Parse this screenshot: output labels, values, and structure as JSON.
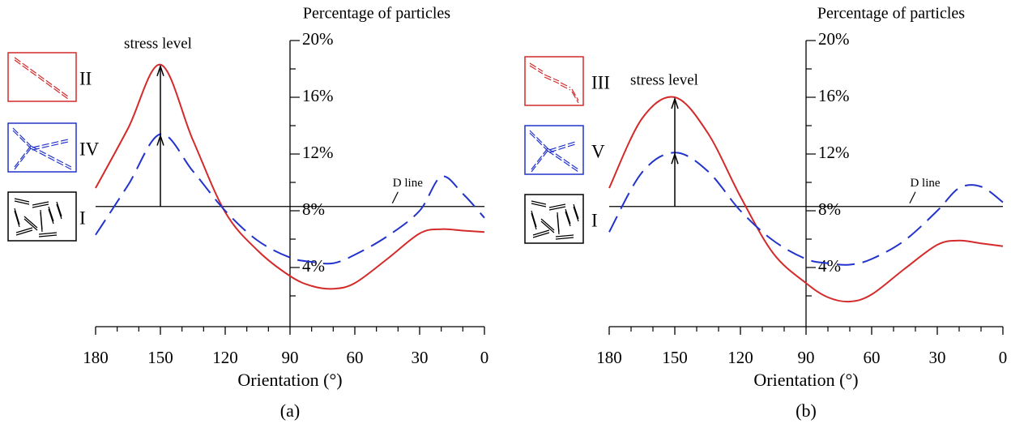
{
  "chart_data": [
    {
      "type": "line",
      "panel_label": "(a)",
      "y_label": "Percentage of particles",
      "x_label": "Orientation (°)",
      "xlim": [
        180,
        0
      ],
      "xticks": [
        180,
        150,
        120,
        90,
        60,
        30,
        0
      ],
      "x_minor_ticks": [
        170,
        160,
        140,
        130,
        110,
        100,
        80,
        70,
        50,
        40,
        20,
        10
      ],
      "ylim": [
        0,
        20
      ],
      "yticks": [
        {
          "value": 4,
          "label": "4%"
        },
        {
          "value": 8,
          "label": "8%"
        },
        {
          "value": 12,
          "label": "12%"
        },
        {
          "value": 16,
          "label": "16%"
        },
        {
          "value": 20,
          "label": "20%"
        }
      ],
      "y_minor_ticks": [
        2,
        6,
        10,
        14,
        18
      ],
      "x": [
        180,
        165,
        150,
        135,
        120,
        105,
        90,
        80,
        70,
        60,
        45,
        30,
        20,
        10,
        0
      ],
      "series": [
        {
          "name": "II",
          "color": "#d42a2a",
          "style": "solid",
          "values": [
            9.6,
            13.8,
            18.3,
            13.0,
            7.9,
            5.2,
            3.4,
            2.7,
            2.5,
            2.9,
            4.6,
            6.4,
            6.7,
            6.6,
            6.5
          ]
        },
        {
          "name": "IV",
          "color": "#2233cc",
          "style": "dashed",
          "values": [
            6.3,
            9.8,
            13.4,
            10.8,
            8.0,
            5.9,
            4.7,
            4.4,
            4.3,
            4.9,
            6.2,
            8.0,
            10.4,
            9.2,
            7.5
          ]
        }
      ],
      "stress_label": "stress level",
      "stress_x": 150,
      "d_line": {
        "label": "D line",
        "value": 8.3,
        "name": "I"
      }
    },
    {
      "type": "line",
      "panel_label": "(b)",
      "y_label": "Percentage of particles",
      "x_label": "Orientation (°)",
      "xlim": [
        180,
        0
      ],
      "xticks": [
        180,
        150,
        120,
        90,
        60,
        30,
        0
      ],
      "x_minor_ticks": [
        170,
        160,
        140,
        130,
        110,
        100,
        80,
        70,
        50,
        40,
        20,
        10
      ],
      "ylim": [
        0,
        20
      ],
      "yticks": [
        {
          "value": 4,
          "label": "4%"
        },
        {
          "value": 8,
          "label": "8%"
        },
        {
          "value": 12,
          "label": "12%"
        },
        {
          "value": 16,
          "label": "16%"
        },
        {
          "value": 20,
          "label": "20%"
        }
      ],
      "y_minor_ticks": [
        2,
        6,
        10,
        14,
        18
      ],
      "x": [
        180,
        165,
        150,
        135,
        120,
        105,
        90,
        80,
        70,
        60,
        45,
        30,
        20,
        10,
        0
      ],
      "series": [
        {
          "name": "III",
          "color": "#d42a2a",
          "style": "solid",
          "values": [
            9.6,
            14.5,
            16.0,
            13.5,
            9.0,
            5.0,
            2.9,
            1.9,
            1.6,
            2.1,
            3.9,
            5.6,
            5.9,
            5.7,
            5.5
          ]
        },
        {
          "name": "V",
          "color": "#2233cc",
          "style": "dashed",
          "values": [
            6.5,
            10.7,
            12.1,
            10.8,
            8.0,
            5.9,
            4.6,
            4.3,
            4.2,
            4.6,
            5.9,
            8.0,
            9.6,
            9.7,
            8.6
          ]
        }
      ],
      "stress_label": "stress level",
      "stress_x": 150,
      "d_line": {
        "label": "D line",
        "value": 8.3,
        "name": "I"
      }
    }
  ]
}
